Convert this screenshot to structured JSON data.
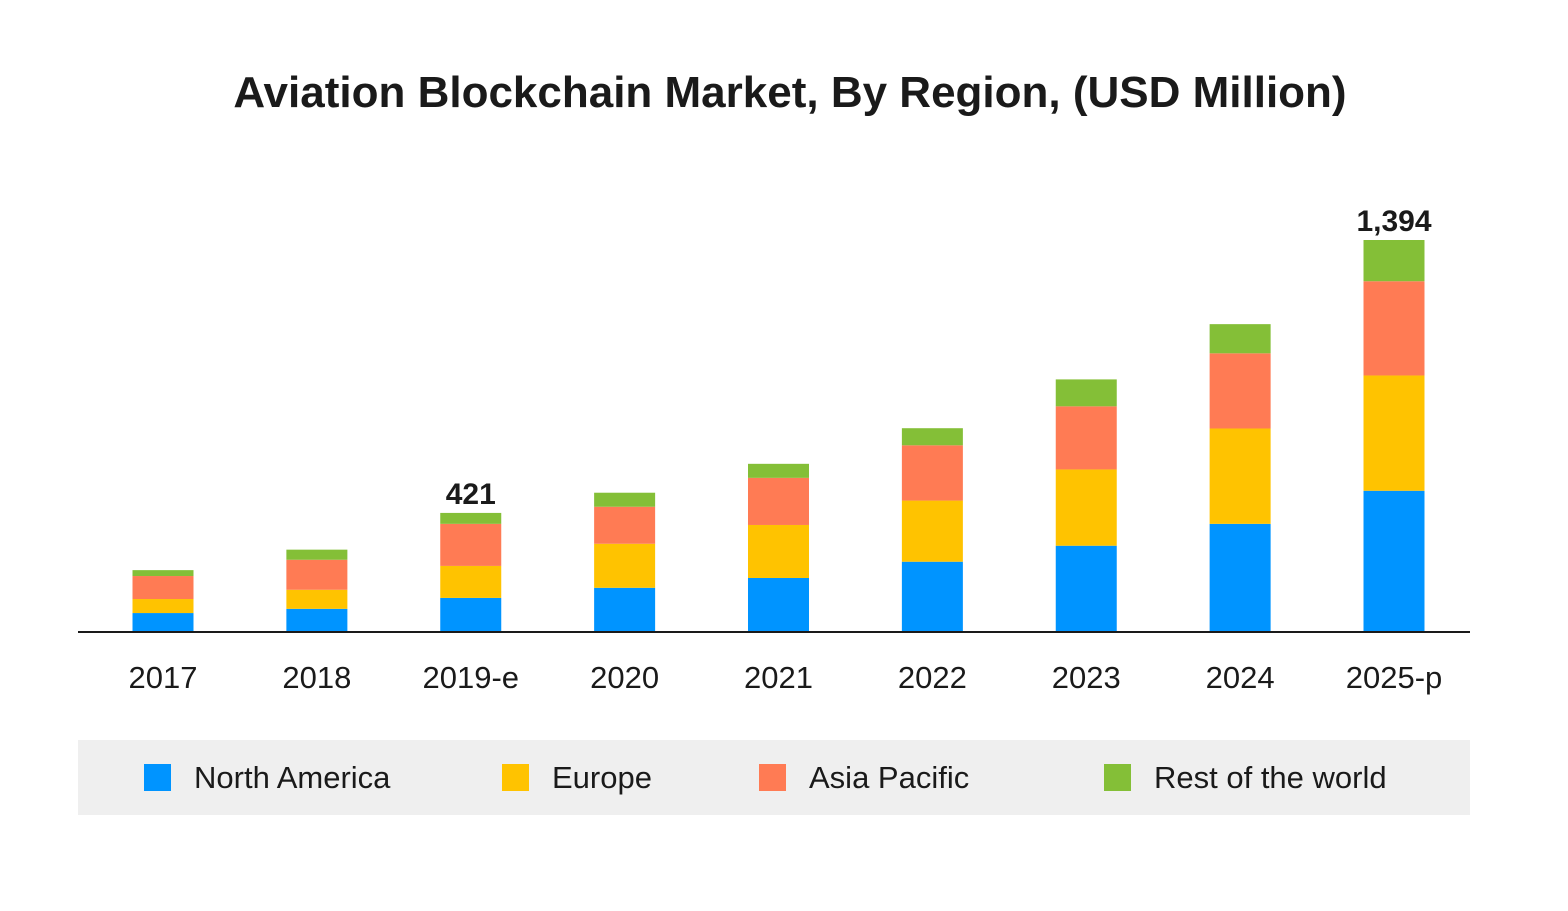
{
  "chart_data": {
    "type": "bar",
    "stacked": true,
    "title": "Aviation Blockchain Market, By Region, (USD Million)",
    "xlabel": "",
    "ylabel": "",
    "categories": [
      "2017",
      "2018",
      "2019-e",
      "2020",
      "2021",
      "2022",
      "2023",
      "2024",
      "2025-p"
    ],
    "series": [
      {
        "name": "North America",
        "color": "#0094ff",
        "values": [
          64,
          79,
          118,
          154,
          189,
          247,
          304,
          382,
          500
        ]
      },
      {
        "name": "Europe",
        "color": "#ffc300",
        "values": [
          50,
          68,
          114,
          157,
          189,
          218,
          272,
          340,
          411
        ]
      },
      {
        "name": "Asia Pacific",
        "color": "#ff7b54",
        "values": [
          82,
          107,
          150,
          132,
          168,
          197,
          225,
          268,
          336
        ]
      },
      {
        "name": "Rest of the world",
        "color": "#84bf37",
        "values": [
          21,
          36,
          39,
          50,
          50,
          61,
          96,
          104,
          147
        ]
      }
    ],
    "data_labels": [
      {
        "category": "2019-e",
        "text": "421"
      },
      {
        "category": "2025-p",
        "text": "1,394"
      }
    ],
    "ylim": [
      0,
      1394
    ],
    "grid": false,
    "y_axis_visible": false,
    "legend_placement": "bottom"
  }
}
